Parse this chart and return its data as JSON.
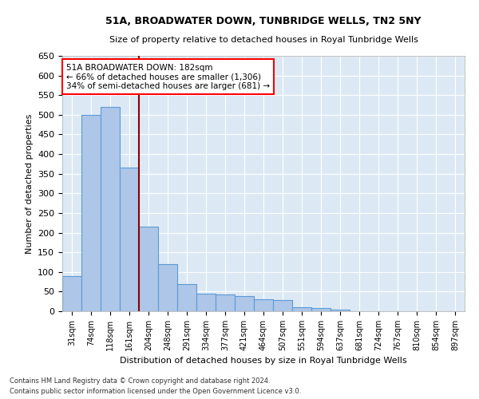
{
  "title": "51A, BROADWATER DOWN, TUNBRIDGE WELLS, TN2 5NY",
  "subtitle": "Size of property relative to detached houses in Royal Tunbridge Wells",
  "xlabel": "Distribution of detached houses by size in Royal Tunbridge Wells",
  "ylabel": "Number of detached properties",
  "footnote1": "Contains HM Land Registry data © Crown copyright and database right 2024.",
  "footnote2": "Contains public sector information licensed under the Open Government Licence v3.0.",
  "annotation_line1": "51A BROADWATER DOWN: 182sqm",
  "annotation_line2": "← 66% of detached houses are smaller (1,306)",
  "annotation_line3": "34% of semi-detached houses are larger (681) →",
  "bar_color": "#aec6e8",
  "bar_edge_color": "#5b9bd5",
  "vline_color": "#8b0000",
  "background_color": "#dce9f5",
  "bin_labels": [
    "31sqm",
    "74sqm",
    "118sqm",
    "161sqm",
    "204sqm",
    "248sqm",
    "291sqm",
    "334sqm",
    "377sqm",
    "421sqm",
    "464sqm",
    "507sqm",
    "551sqm",
    "594sqm",
    "637sqm",
    "681sqm",
    "724sqm",
    "767sqm",
    "810sqm",
    "854sqm",
    "897sqm"
  ],
  "bar_values": [
    90,
    500,
    520,
    365,
    215,
    120,
    70,
    45,
    42,
    38,
    30,
    28,
    10,
    8,
    5,
    1,
    0,
    1,
    0,
    1,
    0
  ],
  "vline_x": 3.5,
  "ylim": [
    0,
    650
  ],
  "yticks": [
    0,
    50,
    100,
    150,
    200,
    250,
    300,
    350,
    400,
    450,
    500,
    550,
    600,
    650
  ]
}
